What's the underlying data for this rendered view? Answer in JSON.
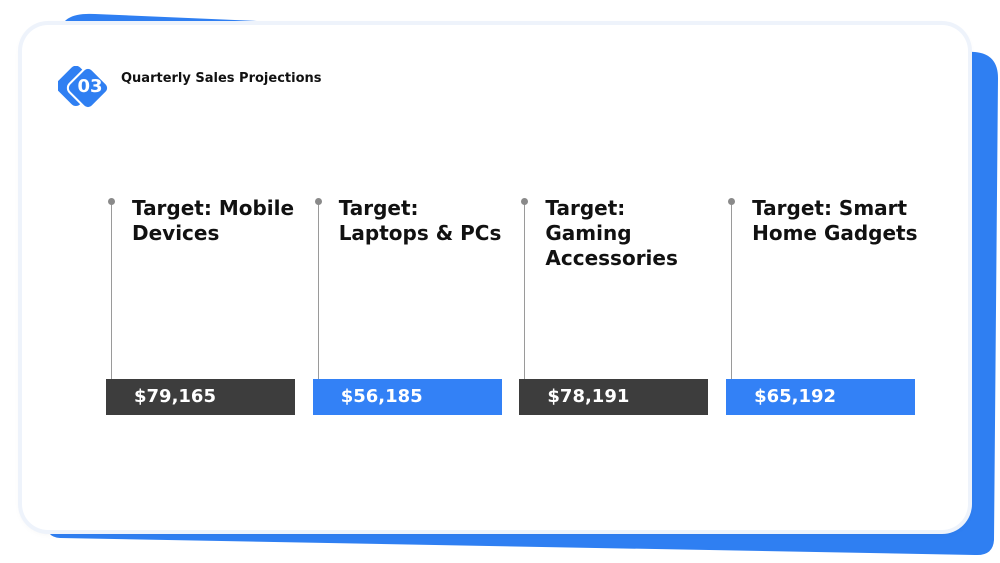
{
  "header": {
    "badge": "03",
    "title": "Quarterly Sales Projections"
  },
  "items": [
    {
      "label": "Target: Mobile Devices",
      "value": "$79,165"
    },
    {
      "label": "Target: Laptops & PCs",
      "value": "$56,185"
    },
    {
      "label": "Target: Gaming Accessories",
      "value": "$78,191"
    },
    {
      "label": "Target: Smart Home Gadgets",
      "value": "$65,192"
    }
  ]
}
